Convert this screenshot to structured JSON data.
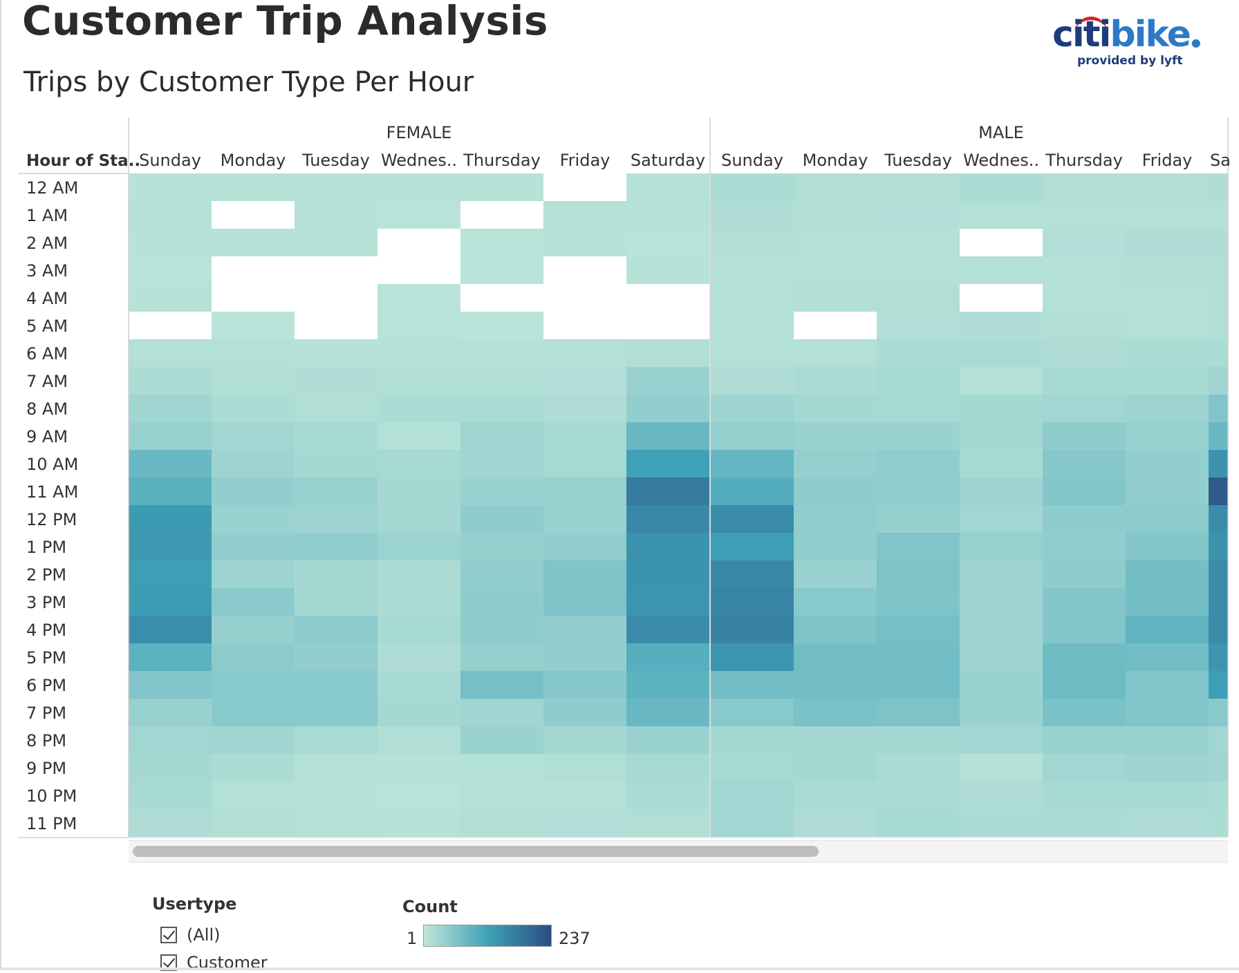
{
  "title": "Customer Trip Analysis",
  "subtitle": "Trips by Customer Type Per Hour",
  "logo": {
    "citi": "citi",
    "bike": "bike",
    "tagline": "provided by lyft"
  },
  "chart_data": {
    "type": "heatmap",
    "row_header": "Hour of Sta..",
    "groups": [
      "FEMALE",
      "MALE"
    ],
    "day_labels": [
      "Sunday",
      "Monday",
      "Tuesday",
      "Wednes..",
      "Thursday",
      "Friday",
      "Saturday"
    ],
    "visible_male_last_label": "Sa",
    "hours": [
      "12 AM",
      "1 AM",
      "2 AM",
      "3 AM",
      "4 AM",
      "5 AM",
      "6 AM",
      "7 AM",
      "8 AM",
      "9 AM",
      "10 AM",
      "11 AM",
      "12 PM",
      "1 PM",
      "2 PM",
      "3 PM",
      "4 PM",
      "5 PM",
      "6 PM",
      "7 PM",
      "8 PM",
      "9 PM",
      "10 PM",
      "11 PM"
    ],
    "color_scale": {
      "min": 1,
      "max": 237,
      "colors": [
        "#bfe6da",
        "#3fa2b8",
        "#2b4d82"
      ]
    },
    "female_counts": [
      [
        8,
        8,
        8,
        8,
        8,
        null,
        10
      ],
      [
        9,
        null,
        9,
        7,
        null,
        10,
        9
      ],
      [
        8,
        8,
        8,
        null,
        7,
        9,
        7
      ],
      [
        7,
        null,
        null,
        null,
        7,
        null,
        8
      ],
      [
        8,
        null,
        null,
        7,
        null,
        null,
        null
      ],
      [
        null,
        6,
        null,
        7,
        6,
        null,
        null
      ],
      [
        12,
        11,
        10,
        10,
        10,
        12,
        14
      ],
      [
        18,
        14,
        15,
        14,
        14,
        13,
        36
      ],
      [
        30,
        18,
        14,
        18,
        20,
        16,
        42
      ],
      [
        38,
        28,
        22,
        12,
        30,
        22,
        80
      ],
      [
        80,
        32,
        26,
        24,
        30,
        24,
        120
      ],
      [
        95,
        42,
        38,
        25,
        36,
        38,
        175
      ],
      [
        130,
        35,
        32,
        25,
        45,
        35,
        155
      ],
      [
        132,
        42,
        44,
        34,
        40,
        42,
        140
      ],
      [
        125,
        32,
        25,
        18,
        42,
        60,
        140
      ],
      [
        128,
        50,
        25,
        20,
        45,
        60,
        138
      ],
      [
        145,
        40,
        48,
        22,
        45,
        42,
        150
      ],
      [
        92,
        48,
        42,
        16,
        40,
        42,
        98
      ],
      [
        58,
        52,
        52,
        22,
        68,
        54,
        90
      ],
      [
        38,
        52,
        52,
        25,
        30,
        45,
        80
      ],
      [
        28,
        30,
        20,
        14,
        35,
        25,
        36
      ],
      [
        25,
        18,
        12,
        9,
        12,
        14,
        22
      ],
      [
        22,
        12,
        10,
        7,
        12,
        10,
        20
      ],
      [
        16,
        14,
        12,
        9,
        14,
        13,
        14
      ]
    ],
    "male_counts": [
      [
        18,
        14,
        14,
        18,
        14,
        14,
        15
      ],
      [
        15,
        14,
        13,
        12,
        12,
        12,
        12
      ],
      [
        14,
        11,
        12,
        null,
        13,
        16,
        15
      ],
      [
        12,
        12,
        12,
        12,
        12,
        14,
        14
      ],
      [
        12,
        14,
        14,
        null,
        12,
        12,
        14
      ],
      [
        12,
        null,
        13,
        15,
        14,
        12,
        14
      ],
      [
        12,
        12,
        18,
        20,
        16,
        18,
        20
      ],
      [
        15,
        20,
        22,
        12,
        22,
        22,
        30
      ],
      [
        32,
        26,
        24,
        26,
        28,
        32,
        58
      ],
      [
        40,
        35,
        35,
        25,
        45,
        38,
        80
      ],
      [
        85,
        40,
        44,
        24,
        54,
        42,
        140
      ],
      [
        100,
        46,
        44,
        32,
        56,
        42,
        220
      ],
      [
        150,
        44,
        40,
        28,
        46,
        48,
        150
      ],
      [
        125,
        44,
        58,
        38,
        44,
        56,
        140
      ],
      [
        155,
        36,
        62,
        32,
        45,
        70,
        150
      ],
      [
        160,
        52,
        60,
        32,
        56,
        70,
        150
      ],
      [
        162,
        60,
        68,
        32,
        56,
        88,
        150
      ],
      [
        135,
        72,
        72,
        32,
        74,
        72,
        135
      ],
      [
        72,
        72,
        72,
        36,
        76,
        58,
        125
      ],
      [
        52,
        65,
        62,
        36,
        65,
        58,
        52
      ],
      [
        26,
        26,
        26,
        28,
        36,
        38,
        28
      ],
      [
        24,
        26,
        20,
        10,
        28,
        32,
        30
      ],
      [
        28,
        20,
        18,
        16,
        22,
        22,
        20
      ],
      [
        28,
        16,
        22,
        18,
        18,
        16,
        18
      ]
    ]
  },
  "filter": {
    "title": "Usertype",
    "items": [
      {
        "label": "(All)",
        "checked": true
      },
      {
        "label": "Customer",
        "checked": true
      }
    ]
  },
  "legend": {
    "title": "Count",
    "min_label": "1",
    "max_label": "237"
  }
}
